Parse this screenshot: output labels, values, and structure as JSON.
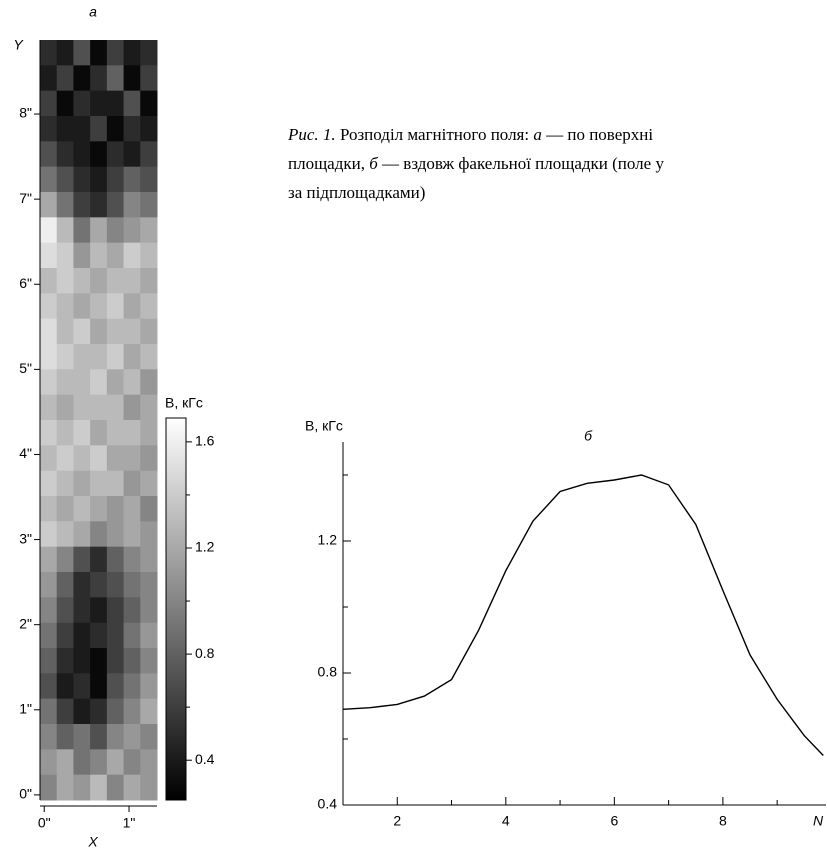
{
  "caption": [
    [
      {
        "text": "Рис. 1.",
        "italic": true
      },
      {
        "text": " Розподіл магнітного поля: ",
        "italic": false
      },
      {
        "text": "а",
        "italic": true
      },
      {
        "text": " — по поверхні",
        "italic": false
      }
    ],
    [
      {
        "text": "площадки, ",
        "italic": false
      },
      {
        "text": "б",
        "italic": true
      },
      {
        "text": " — вздовж факельної площадки (поле у",
        "italic": false
      }
    ],
    [
      {
        "text": "за підплощадками)",
        "italic": false
      }
    ]
  ],
  "chart_data": [
    {
      "type": "heatmap",
      "title": "а",
      "x_label": "X",
      "y_label": "Y",
      "xlim": [
        -0.05,
        1.33
      ],
      "ylim": [
        -0.06,
        8.87
      ],
      "xticks": [
        {
          "value": 0,
          "label": "0\""
        },
        {
          "value": 1,
          "label": "1\""
        }
      ],
      "yticks": [
        {
          "value": 0,
          "label": "0\""
        },
        {
          "value": 1,
          "label": "1\""
        },
        {
          "value": 2,
          "label": "2\""
        },
        {
          "value": 3,
          "label": "3\""
        },
        {
          "value": 4,
          "label": "4\""
        },
        {
          "value": 5,
          "label": "5\""
        },
        {
          "value": 6,
          "label": "6\""
        },
        {
          "value": 7,
          "label": "7\""
        },
        {
          "value": 8,
          "label": "8\""
        }
      ],
      "z": [
        [
          0.5,
          0.4,
          0.7,
          0.3,
          0.6,
          0.4,
          0.5
        ],
        [
          0.4,
          0.6,
          0.3,
          0.5,
          0.8,
          0.3,
          0.6
        ],
        [
          0.6,
          0.3,
          0.5,
          0.4,
          0.4,
          0.7,
          0.3
        ],
        [
          0.5,
          0.4,
          0.4,
          0.6,
          0.3,
          0.5,
          0.4
        ],
        [
          0.7,
          0.5,
          0.4,
          0.3,
          0.5,
          0.4,
          0.6
        ],
        [
          0.9,
          0.7,
          0.5,
          0.4,
          0.6,
          0.8,
          0.7
        ],
        [
          1.2,
          0.9,
          0.6,
          0.5,
          0.7,
          1.0,
          0.9
        ],
        [
          1.6,
          1.3,
          0.9,
          1.2,
          1.0,
          1.1,
          1.2
        ],
        [
          1.5,
          1.4,
          1.1,
          1.3,
          1.2,
          1.4,
          1.3
        ],
        [
          1.3,
          1.4,
          1.3,
          1.2,
          1.3,
          1.3,
          1.2
        ],
        [
          1.4,
          1.3,
          1.2,
          1.3,
          1.4,
          1.2,
          1.3
        ],
        [
          1.5,
          1.3,
          1.4,
          1.2,
          1.3,
          1.3,
          1.2
        ],
        [
          1.5,
          1.4,
          1.3,
          1.3,
          1.4,
          1.2,
          1.3
        ],
        [
          1.4,
          1.3,
          1.3,
          1.4,
          1.2,
          1.3,
          1.1
        ],
        [
          1.3,
          1.2,
          1.3,
          1.3,
          1.3,
          1.1,
          1.2
        ],
        [
          1.4,
          1.3,
          1.4,
          1.2,
          1.3,
          1.3,
          1.2
        ],
        [
          1.3,
          1.4,
          1.3,
          1.4,
          1.2,
          1.2,
          1.1
        ],
        [
          1.4,
          1.3,
          1.2,
          1.3,
          1.3,
          1.1,
          1.2
        ],
        [
          1.3,
          1.2,
          1.3,
          1.2,
          1.1,
          1.2,
          1.0
        ],
        [
          1.4,
          1.3,
          1.2,
          1.0,
          1.1,
          1.2,
          1.1
        ],
        [
          1.2,
          1.0,
          0.7,
          0.5,
          0.8,
          1.0,
          1.1
        ],
        [
          1.1,
          0.8,
          0.5,
          0.6,
          0.7,
          0.9,
          1.0
        ],
        [
          1.0,
          0.7,
          0.5,
          0.4,
          0.6,
          0.8,
          1.0
        ],
        [
          0.9,
          0.6,
          0.4,
          0.5,
          0.6,
          0.9,
          1.1
        ],
        [
          0.8,
          0.5,
          0.4,
          0.3,
          0.6,
          0.8,
          1.0
        ],
        [
          0.7,
          0.4,
          0.5,
          0.3,
          0.7,
          0.9,
          1.1
        ],
        [
          0.9,
          0.6,
          0.4,
          0.5,
          0.8,
          1.0,
          1.2
        ],
        [
          1.0,
          0.8,
          0.9,
          0.7,
          1.0,
          1.1,
          1.0
        ],
        [
          1.1,
          1.2,
          0.9,
          1.0,
          1.2,
          1.0,
          1.1
        ],
        [
          1.0,
          1.2,
          1.1,
          1.3,
          1.0,
          1.2,
          1.1
        ]
      ],
      "zlim": [
        0.25,
        1.69
      ],
      "colorbar": {
        "label": "B, кГс",
        "ticks": [
          0.4,
          0.8,
          1.2,
          1.6
        ],
        "minor_ticks": [
          0.6,
          1.0,
          1.4
        ]
      }
    },
    {
      "type": "line",
      "title": "б",
      "x_label": "N",
      "y_label": "B, кГс",
      "color": "#000000",
      "x": [
        1,
        1.5,
        2,
        2.5,
        3,
        3.5,
        4,
        4.5,
        5,
        5.5,
        6,
        6.5,
        7,
        7.5,
        8,
        8.5,
        9,
        9.5,
        9.85
      ],
      "values": [
        0.69,
        0.695,
        0.705,
        0.73,
        0.78,
        0.93,
        1.11,
        1.26,
        1.35,
        1.375,
        1.385,
        1.4,
        1.37,
        1.25,
        1.05,
        0.855,
        0.72,
        0.61,
        0.55
      ],
      "xlim": [
        1,
        9.9
      ],
      "ylim": [
        0.4,
        1.5
      ],
      "xticks": [
        2,
        4,
        6,
        8
      ],
      "xminor_ticks": [
        3,
        5,
        7,
        9
      ],
      "yticks": [
        0.4,
        0.8,
        1.2
      ],
      "yminor_ticks": [
        0.6,
        1.0,
        1.4
      ]
    }
  ]
}
